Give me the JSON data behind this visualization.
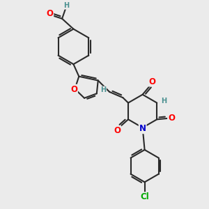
{
  "background_color": "#ebebeb",
  "bond_color": "#2a2a2a",
  "bond_width": 1.5,
  "atom_colors": {
    "O": "#ff0000",
    "N": "#0000cc",
    "Cl": "#00aa00",
    "H": "#4a9090",
    "C": "#2a2a2a"
  },
  "fs": 8.5,
  "fs_small": 7.0
}
